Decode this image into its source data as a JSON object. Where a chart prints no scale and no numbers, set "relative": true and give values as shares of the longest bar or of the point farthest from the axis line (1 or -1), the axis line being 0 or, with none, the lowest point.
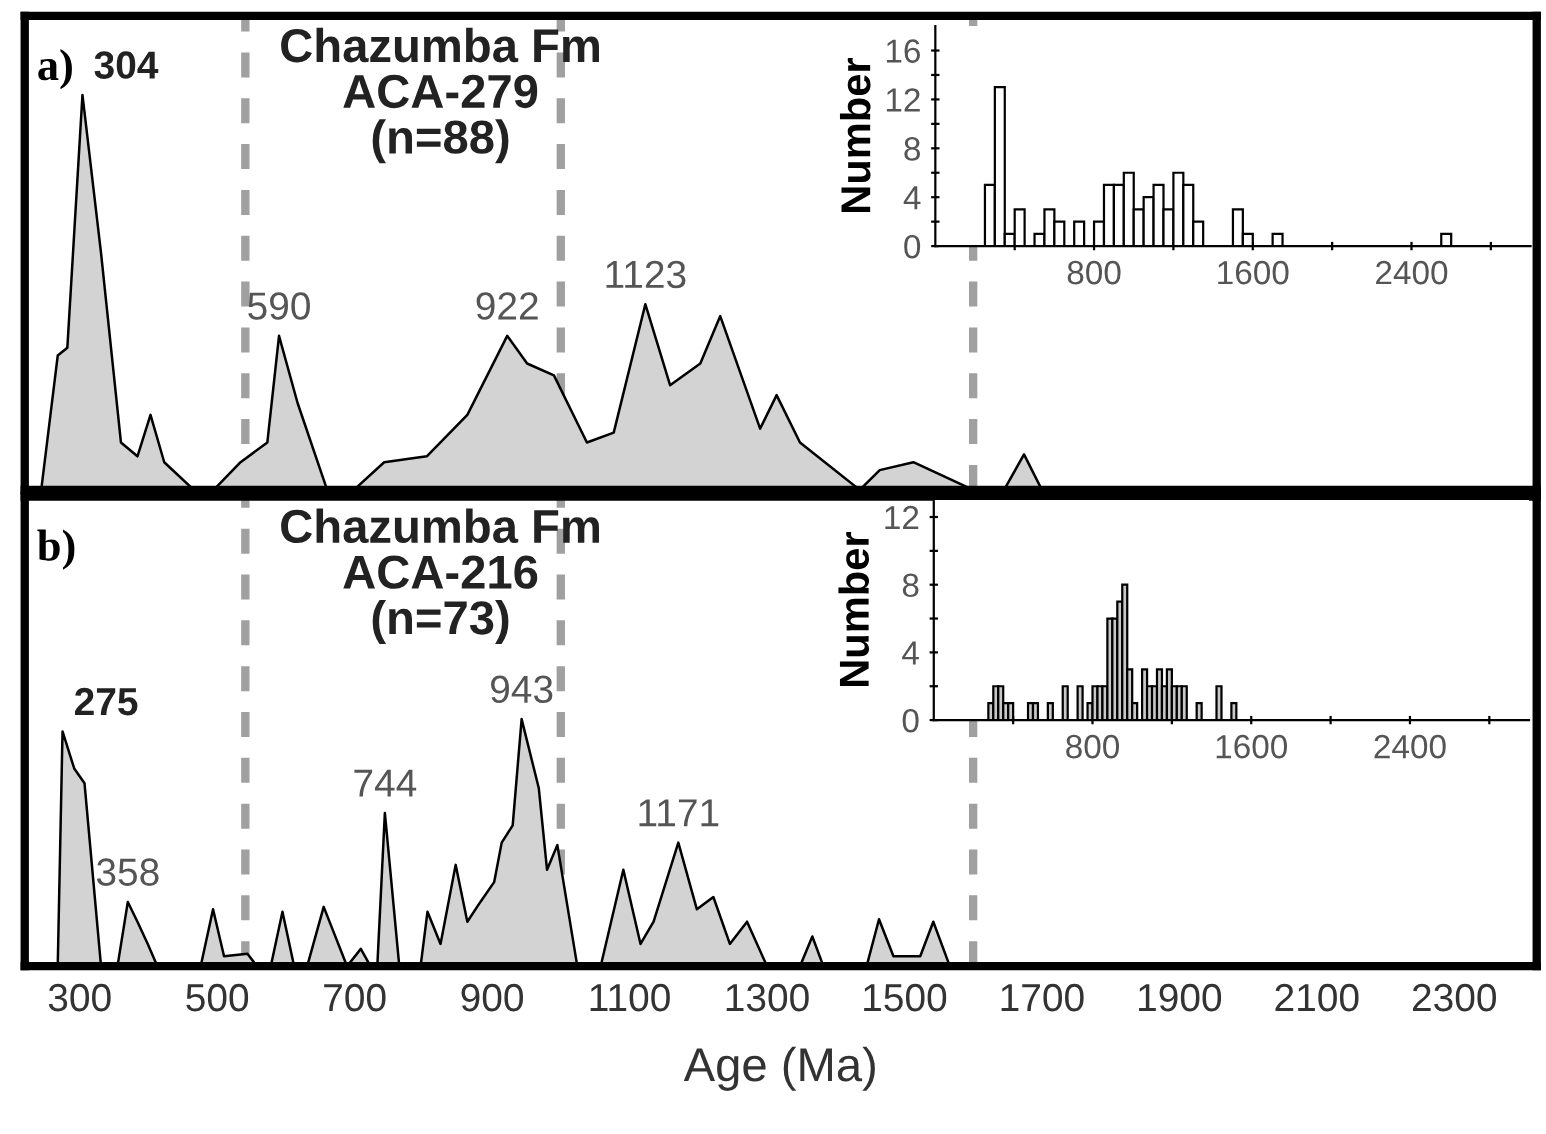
{
  "chart_data": [
    {
      "type": "area",
      "title": "Chazumba Fm\nACA-279\n(n=88)",
      "relative": true,
      "tick_labels": false,
      "xlim": [
        220,
        2420
      ],
      "color": "#d3d3d3",
      "x": [
        220,
        244,
        268,
        282,
        304,
        331,
        360,
        384,
        403,
        423,
        466,
        495,
        534,
        573,
        590,
        617,
        660,
        699,
        743,
        805,
        864,
        922,
        951,
        990,
        1038,
        1077,
        1123,
        1159,
        1203,
        1232,
        1290,
        1314,
        1348,
        1435,
        1464,
        1513,
        1600,
        1645,
        1674,
        1700,
        2420
      ],
      "values": [
        0,
        0,
        0.34,
        0.36,
        1.0,
        0.6,
        0.12,
        0.085,
        0.19,
        0.07,
        0,
        0,
        0.07,
        0.12,
        0.39,
        0.22,
        0,
        0,
        0.07,
        0.085,
        0.19,
        0.39,
        0.32,
        0.29,
        0.12,
        0.145,
        0.47,
        0.265,
        0.32,
        0.44,
        0.155,
        0.24,
        0.12,
        0,
        0.05,
        0.07,
        0,
        0,
        0.09,
        0,
        0
      ],
      "ref_lines": [
        {
          "axis": "x",
          "value": 541,
          "color": "#a0a0a0",
          "line_style": "dashed"
        },
        {
          "axis": "x",
          "value": 1000,
          "color": "#a0a0a0",
          "line_style": "dashed"
        },
        {
          "axis": "x",
          "value": 1600,
          "color": "#a0a0a0",
          "line_style": "dashed"
        }
      ],
      "annotations": [
        "a)",
        {
          "text": "304",
          "x": 304,
          "y": 1.0
        },
        {
          "text": "590",
          "x": 590,
          "y": 0.39
        },
        {
          "text": "922",
          "x": 922,
          "y": 0.39
        },
        {
          "text": "1123",
          "x": 1123,
          "y": 0.47
        }
      ]
    },
    {
      "type": "histogram",
      "ylabel": "Number",
      "color": "#ffffff",
      "xlim": [
        0,
        3000
      ],
      "ylim": [
        0,
        18
      ],
      "xticks": [
        {
          "value": 400,
          "label": null
        },
        800,
        {
          "value": 1200,
          "label": null
        },
        1600,
        {
          "value": 2000,
          "label": null
        },
        2400,
        {
          "value": 2800,
          "label": null
        }
      ],
      "yticks": [
        0,
        {
          "value": 2,
          "label": null
        },
        4,
        {
          "value": 6,
          "label": null
        },
        8,
        {
          "value": 10,
          "label": null
        },
        12,
        {
          "value": 14,
          "label": null
        },
        16
      ],
      "bins": [
        250,
        300,
        350,
        400,
        450,
        500,
        550,
        600,
        650,
        700,
        750,
        800,
        850,
        900,
        950,
        1000,
        1050,
        1100,
        1150,
        1200,
        1250,
        1300,
        1350,
        1400,
        1450,
        1500,
        1550,
        1600,
        1650,
        1700,
        1750,
        1800,
        1850,
        1900,
        1950,
        2000,
        2050,
        2100,
        2150,
        2200,
        2250,
        2300,
        2350,
        2400,
        2450,
        2500,
        2550,
        2600
      ],
      "values": [
        5,
        13,
        1,
        3,
        0,
        1,
        3,
        2,
        0,
        2,
        0,
        2,
        5,
        5,
        6,
        3,
        4,
        5,
        3,
        6,
        5,
        2,
        0,
        0,
        0,
        3,
        1,
        0,
        0,
        1,
        0,
        0,
        0,
        0,
        0,
        0,
        0,
        0,
        0,
        0,
        0,
        0,
        0,
        0,
        0,
        0,
        1
      ]
    },
    {
      "type": "area",
      "title": "Chazumba Fm\nACA-216\n(n=73)",
      "relative": true,
      "tick_labels": "x",
      "xlim": [
        220,
        2420
      ],
      "xlabel": "Age (Ma)",
      "color": "#d3d3d3",
      "xticks": [
        300,
        500,
        700,
        900,
        1100,
        1300,
        1500,
        1700,
        1900,
        2100,
        2300
      ],
      "x": [
        220,
        268,
        275,
        292,
        307,
        331,
        355,
        370,
        384,
        399,
        413,
        476,
        494,
        510,
        544,
        558,
        578,
        595,
        612,
        631,
        655,
        689,
        709,
        723,
        733,
        744,
        765,
        796,
        806,
        825,
        847,
        864,
        883,
        903,
        914,
        930,
        943,
        968,
        980,
        995,
        1024,
        1058,
        1091,
        1116,
        1135,
        1171,
        1198,
        1222,
        1246,
        1271,
        1300,
        1348,
        1366,
        1382,
        1445,
        1463,
        1484,
        1523,
        1542,
        1566,
        2420
      ],
      "values": [
        0,
        0,
        0.95,
        0.8,
        0.74,
        0,
        0,
        0.26,
        0.18,
        0.09,
        0,
        0,
        0.23,
        0.04,
        0.05,
        0,
        0,
        0.22,
        0,
        0,
        0.24,
        0,
        0.07,
        0,
        0,
        0.62,
        0,
        0,
        0.22,
        0.09,
        0.41,
        0.18,
        0.26,
        0.34,
        0.5,
        0.57,
        1.0,
        0.72,
        0.39,
        0.49,
        0,
        0,
        0.39,
        0.09,
        0.18,
        0.5,
        0.23,
        0.28,
        0.09,
        0.18,
        0,
        0,
        0.12,
        0,
        0,
        0.19,
        0.04,
        0.04,
        0.18,
        0,
        0
      ],
      "ref_lines": [
        {
          "axis": "x",
          "value": 541,
          "color": "#a0a0a0",
          "line_style": "dashed"
        },
        {
          "axis": "x",
          "value": 1000,
          "color": "#a0a0a0",
          "line_style": "dashed"
        },
        {
          "axis": "x",
          "value": 1600,
          "color": "#a0a0a0",
          "line_style": "dashed"
        }
      ],
      "annotations": [
        "b)",
        {
          "text": "275",
          "x": 275,
          "y": 0.95
        },
        {
          "text": "358",
          "x": 370,
          "y": 0.26
        },
        {
          "text": "744",
          "x": 744,
          "y": 0.62
        },
        {
          "text": "943",
          "x": 943,
          "y": 1.0
        },
        {
          "text": "1171",
          "x": 1171,
          "y": 0.5
        }
      ]
    },
    {
      "type": "histogram",
      "ylabel": "Number",
      "color": "#c8c8c8",
      "xlim": [
        0,
        3000
      ],
      "ylim": [
        0,
        13
      ],
      "xticks": [
        {
          "value": 400,
          "label": null
        },
        800,
        {
          "value": 1200,
          "label": null
        },
        1600,
        {
          "value": 2000,
          "label": null
        },
        2400,
        {
          "value": 2800,
          "label": null
        }
      ],
      "yticks": [
        0,
        {
          "value": 2,
          "label": null
        },
        4,
        {
          "value": 6,
          "label": null
        },
        8,
        {
          "value": 10,
          "label": null
        },
        12
      ],
      "bins": [
        275,
        300,
        325,
        350,
        375,
        400,
        425,
        450,
        475,
        500,
        525,
        550,
        575,
        600,
        625,
        650,
        675,
        700,
        725,
        750,
        775,
        800,
        825,
        850,
        875,
        900,
        925,
        950,
        975,
        1000,
        1025,
        1050,
        1075,
        1100,
        1125,
        1150,
        1175,
        1200,
        1225,
        1250,
        1275,
        1300,
        1325,
        1350,
        1375,
        1400,
        1425,
        1450,
        1475,
        1500,
        1525
      ],
      "values": [
        1,
        2,
        2,
        1,
        1,
        0,
        0,
        0,
        1,
        1,
        0,
        0,
        1,
        0,
        0,
        2,
        0,
        0,
        2,
        0,
        1,
        2,
        2,
        2,
        6,
        6,
        7,
        8,
        3,
        1,
        0,
        3,
        2,
        2,
        3,
        2,
        3,
        2,
        2,
        2,
        0,
        0,
        1,
        0,
        0,
        0,
        2,
        0,
        0,
        1
      ]
    }
  ]
}
